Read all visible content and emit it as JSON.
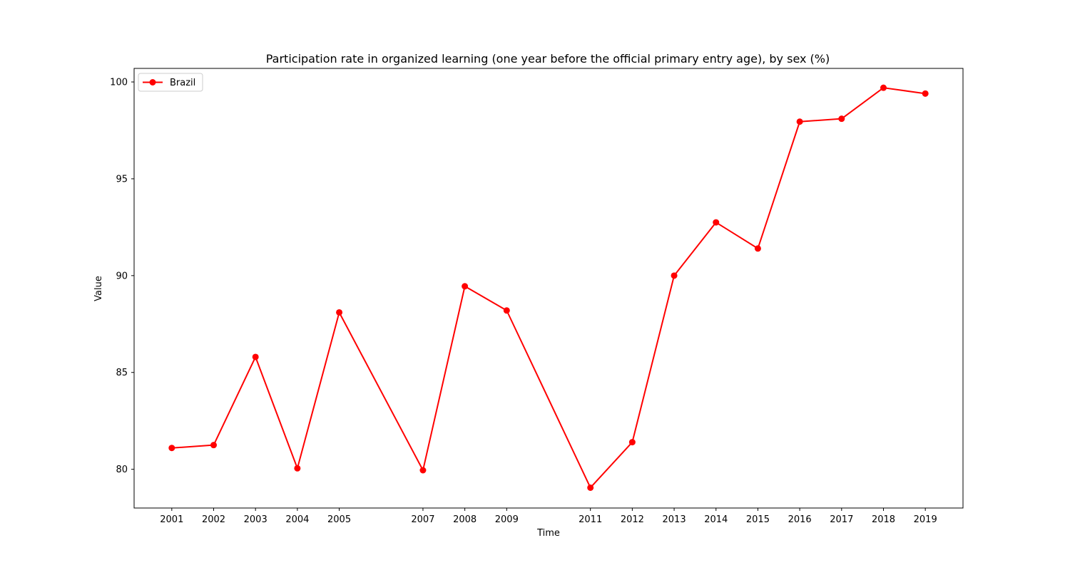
{
  "chart_data": {
    "type": "line",
    "title": "Participation rate in organized learning (one year before the official primary entry age), by sex (%)",
    "xlabel": "Time",
    "ylabel": "Value",
    "x": [
      2001,
      2002,
      2003,
      2004,
      2005,
      2007,
      2008,
      2009,
      2011,
      2012,
      2013,
      2014,
      2015,
      2016,
      2017,
      2018,
      2019
    ],
    "x_tick_labels": [
      "2001",
      "2002",
      "2003",
      "2004",
      "2005",
      "2007",
      "2008",
      "2009",
      "2011",
      "2012",
      "2013",
      "2014",
      "2015",
      "2016",
      "2017",
      "2018",
      "2019"
    ],
    "y_ticks": [
      80,
      85,
      90,
      95,
      100
    ],
    "y_tick_labels": [
      "80",
      "85",
      "90",
      "95",
      "100"
    ],
    "xlim": [
      2000.1,
      2019.9
    ],
    "ylim": [
      78.0,
      100.7
    ],
    "grid": false,
    "legend_position": "top-left",
    "series": [
      {
        "name": "Brazil",
        "color": "#ff0000",
        "marker": "circle",
        "values": [
          81.1,
          81.25,
          85.8,
          80.05,
          88.1,
          79.95,
          89.45,
          88.2,
          79.05,
          81.4,
          90.0,
          92.75,
          91.4,
          97.95,
          98.1,
          99.7,
          99.4
        ]
      }
    ]
  }
}
